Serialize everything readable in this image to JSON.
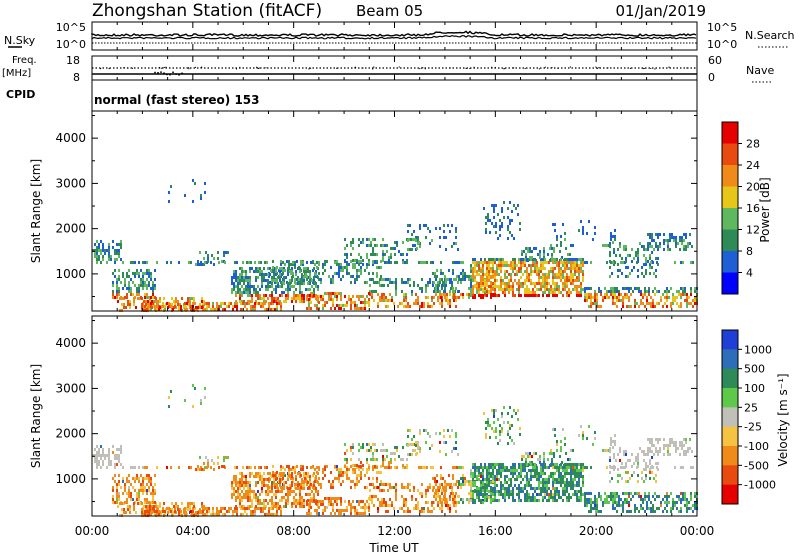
{
  "header": {
    "station": "Zhongshan Station (fitACF)",
    "beam": "Beam 05",
    "date": "01/Jan/2019"
  },
  "strips": {
    "nsky_label": "N.Sky",
    "nsky_ticks": [
      "10^5",
      "10^0"
    ],
    "nsearch_label": "N.Search",
    "nsearch_ticks": [
      "10^5",
      "10^0"
    ],
    "freq_label": "Freq.",
    "freq_unit": "[MHz]",
    "freq_ticks": [
      "18",
      "8"
    ],
    "nave_label": "Nave",
    "nave_ticks": [
      "60",
      "0"
    ],
    "cpid_label": "CPID",
    "cpid_text": "normal (fast stereo) 153"
  },
  "chart_data": [
    {
      "type": "heatmap",
      "title": "",
      "xlabel": "Time UT",
      "ylabel": "Slant Range [km]",
      "x_ticks": [
        "00:00",
        "04:00",
        "08:00",
        "12:00",
        "16:00",
        "20:00",
        "00:00"
      ],
      "xlim_hours": [
        0,
        24
      ],
      "y_ticks": [
        1000,
        2000,
        3000,
        4000
      ],
      "ylim": [
        180,
        4600
      ],
      "colorbar": {
        "label": "Power [dB]",
        "ticks": [
          4,
          8,
          12,
          16,
          20,
          24,
          28
        ],
        "range": [
          0,
          32
        ],
        "colors": [
          "#0000ff",
          "#1f5fd6",
          "#2e8b57",
          "#5fb85f",
          "#e6c619",
          "#f08a19",
          "#e84a10",
          "#e60000"
        ]
      }
    },
    {
      "type": "heatmap",
      "title": "",
      "xlabel": "Time UT",
      "ylabel": "Slant Range [km]",
      "x_ticks": [
        "00:00",
        "04:00",
        "08:00",
        "12:00",
        "16:00",
        "20:00",
        "00:00"
      ],
      "xlim_hours": [
        0,
        24
      ],
      "y_ticks": [
        1000,
        2000,
        3000,
        4000
      ],
      "ylim": [
        180,
        4600
      ],
      "colorbar": {
        "label": "Velocity [m s⁻¹]",
        "ticks": [
          "1000",
          "500",
          "100",
          "25",
          "-25",
          "-100",
          "-500",
          "-1000"
        ],
        "colors": [
          "#1f3fd6",
          "#2e6db8",
          "#2e8b57",
          "#5ec84a",
          "#c0c0b8",
          "#f5c242",
          "#f08a19",
          "#e84a10",
          "#e60000"
        ]
      }
    }
  ]
}
